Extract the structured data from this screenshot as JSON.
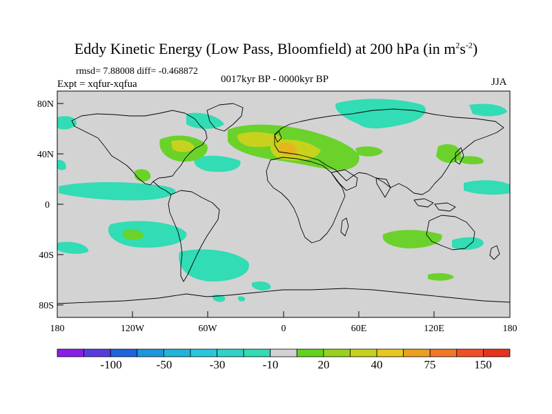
{
  "title": {
    "main": "Eddy Kinetic Energy (Low Pass, Bloomfield) at 200 hPa (in m",
    "sup1": "2",
    "mid": "s",
    "sup2": "-2",
    "close": ")"
  },
  "stats": "rmsd= 7.88008 diff= -0.468872",
  "experiment": "Expt = xqfur-xqfua",
  "period": "0017kyr BP - 0000kyr BP",
  "season": "JJA",
  "lat_labels": [
    "80N",
    "40N",
    "0",
    "40S",
    "80S"
  ],
  "lon_labels": [
    "180",
    "120W",
    "60W",
    "0",
    "60E",
    "120E",
    "180"
  ],
  "colorbar": {
    "colors": [
      "#8a1ee6",
      "#5a3cdc",
      "#1e64dc",
      "#1e96dc",
      "#1eb4dc",
      "#28c8dc",
      "#32d2c8",
      "#32dcb4",
      "#d2d2d2",
      "#64d21e",
      "#96d21e",
      "#c8d21e",
      "#e6c81e",
      "#eba01e",
      "#f07828",
      "#f05028",
      "#e6321e"
    ],
    "labels": [
      "-100",
      "-50",
      "-30",
      "-10",
      "20",
      "40",
      "75",
      "150"
    ]
  },
  "legend_colors": {
    "land_bg": "#d3d3d3",
    "teal": "#32dcb4",
    "green": "#6ad22a",
    "yellow_green": "#c8d21e",
    "orange": "#e6b41e"
  }
}
